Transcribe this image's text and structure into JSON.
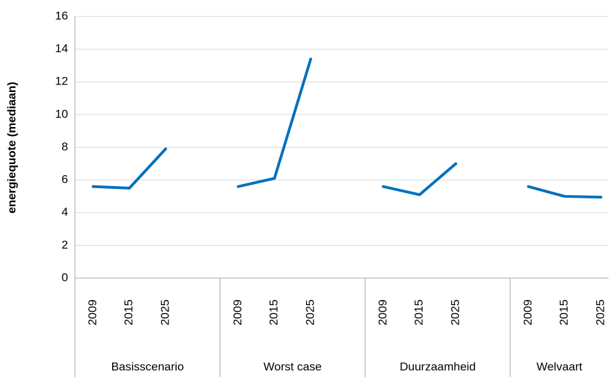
{
  "chart_data": {
    "type": "line",
    "y_label": "energiequote (mediaan)",
    "color": "#0070c0",
    "groups": [
      {
        "name": "Basisscenario",
        "categories": [
          "2009",
          "2015",
          "2025"
        ],
        "values": [
          5.6,
          5.5,
          7.9
        ]
      },
      {
        "name": "Worst case",
        "categories": [
          "2009",
          "2015",
          "2025"
        ],
        "values": [
          5.6,
          6.1,
          13.4
        ]
      },
      {
        "name": "Duurzaamheid",
        "categories": [
          "2009",
          "2015",
          "2025"
        ],
        "values": [
          5.6,
          5.1,
          7.0
        ]
      },
      {
        "name": "Welvaart",
        "categories": [
          "2009",
          "2015",
          "2025"
        ],
        "values": [
          5.6,
          5.0,
          4.95
        ]
      }
    ],
    "ylim": [
      0,
      16
    ],
    "yticks": [
      0,
      2,
      4,
      6,
      8,
      10,
      12,
      14,
      16
    ],
    "grid": true
  }
}
